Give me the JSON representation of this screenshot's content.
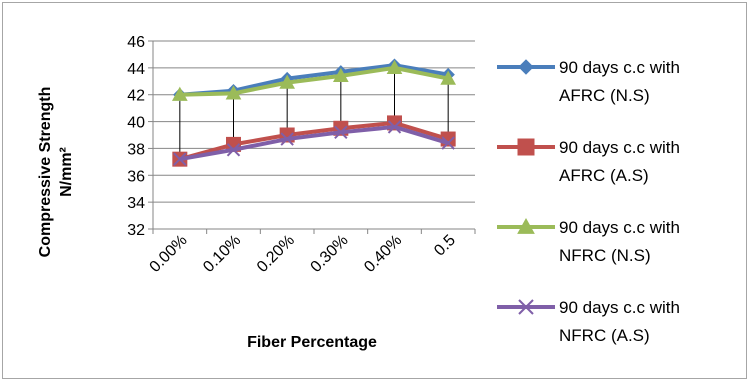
{
  "chart_data": {
    "type": "line",
    "xlabel": "Fiber Percentage",
    "ylabel_lines": [
      "Compressive Strength",
      "N/mm²"
    ],
    "categories": [
      "0.00%",
      "0.10%",
      "0.20%",
      "0.30%",
      "0.40%",
      "0.5"
    ],
    "ylim": [
      32,
      46
    ],
    "yticks": [
      "32",
      "34",
      "36",
      "38",
      "40",
      "42",
      "44",
      "46"
    ],
    "grid": true,
    "legend_position": "right",
    "drop_lines": true,
    "series": [
      {
        "legend_lines": [
          "90 days c.c with",
          "AFRC (N.S)"
        ],
        "color": "#4a7ebb",
        "marker": "diamond",
        "values": [
          42.0,
          42.3,
          43.2,
          43.7,
          44.2,
          43.5
        ]
      },
      {
        "legend_lines": [
          "90 days c.c with",
          "AFRC (A.S)"
        ],
        "color": "#c0504d",
        "marker": "square",
        "values": [
          37.2,
          38.3,
          39.0,
          39.5,
          39.9,
          38.7
        ]
      },
      {
        "legend_lines": [
          "90 days c.c with",
          "NFRC (N.S)"
        ],
        "color": "#9bbb59",
        "marker": "triangle",
        "values": [
          42.0,
          42.1,
          42.9,
          43.4,
          44.0,
          43.2
        ]
      },
      {
        "legend_lines": [
          "90 days c.c with",
          "NFRC (A.S)"
        ],
        "color": "#7f5fa8",
        "marker": "x",
        "values": [
          37.2,
          37.9,
          38.7,
          39.2,
          39.6,
          38.4
        ]
      }
    ]
  }
}
